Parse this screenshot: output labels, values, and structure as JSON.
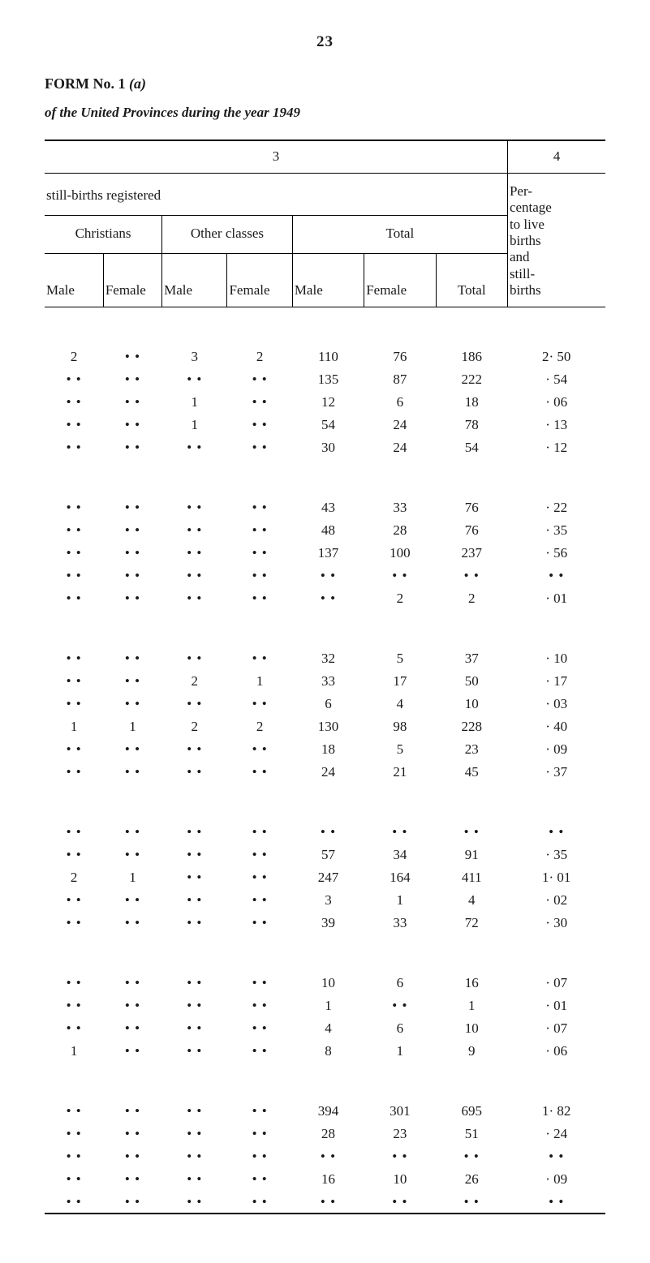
{
  "page_number": "23",
  "form_label_prefix": "FORM No. 1 ",
  "form_label_italic": "(a)",
  "title_italic_prefix": "of the United",
  "title_rest": " Provinces during the year 1949",
  "col_group_number_left": "3",
  "col_group_number_right": "4",
  "section_heading": "still-births registered",
  "spanners": {
    "christians": "Christians",
    "other": "Other classes",
    "total": "Total"
  },
  "subheaders": {
    "male": "Male",
    "female": "Female",
    "total": "Total"
  },
  "pct_header_lines": [
    "Per-",
    "centage",
    "to live",
    "births",
    "and",
    "still-",
    "births"
  ],
  "empty_cell": "• •",
  "blocks": [
    [
      [
        "2",
        "",
        "3",
        "2",
        "110",
        "76",
        "186",
        "2· 50"
      ],
      [
        "",
        "",
        "",
        "",
        "135",
        "87",
        "222",
        "· 54"
      ],
      [
        "",
        "",
        "1",
        "",
        "12",
        "6",
        "18",
        "· 06"
      ],
      [
        "",
        "",
        "1",
        "",
        "54",
        "24",
        "78",
        "· 13"
      ],
      [
        "",
        "",
        "",
        "",
        "30",
        "24",
        "54",
        "· 12"
      ]
    ],
    [
      [
        "",
        "",
        "",
        "",
        "43",
        "33",
        "76",
        "· 22"
      ],
      [
        "",
        "",
        "",
        "",
        "48",
        "28",
        "76",
        "· 35"
      ],
      [
        "",
        "",
        "",
        "",
        "137",
        "100",
        "237",
        "· 56"
      ],
      [
        "",
        "",
        "",
        "",
        "",
        "",
        "",
        ""
      ],
      [
        "",
        "",
        "",
        "",
        "",
        "2",
        "2",
        "· 01"
      ]
    ],
    [
      [
        "",
        "",
        "",
        "",
        "32",
        "5",
        "37",
        "· 10"
      ],
      [
        "",
        "",
        "2",
        "1",
        "33",
        "17",
        "50",
        "· 17"
      ],
      [
        "",
        "",
        "",
        "",
        "6",
        "4",
        "10",
        "· 03"
      ],
      [
        "1",
        "1",
        "2",
        "2",
        "130",
        "98",
        "228",
        "· 40"
      ],
      [
        "",
        "",
        "",
        "",
        "18",
        "5",
        "23",
        "· 09"
      ],
      [
        "",
        "",
        "",
        "",
        "24",
        "21",
        "45",
        "· 37"
      ]
    ],
    [
      [
        "",
        "",
        "",
        "",
        "",
        "",
        "",
        ""
      ],
      [
        "",
        "",
        "",
        "",
        "57",
        "34",
        "91",
        "· 35"
      ],
      [
        "2",
        "1",
        "",
        "",
        "247",
        "164",
        "411",
        "1· 01"
      ],
      [
        "",
        "",
        "",
        "",
        "3",
        "1",
        "4",
        "· 02"
      ],
      [
        "",
        "",
        "",
        "",
        "39",
        "33",
        "72",
        "· 30"
      ]
    ],
    [
      [
        "",
        "",
        "",
        "",
        "10",
        "6",
        "16",
        "· 07"
      ],
      [
        "",
        "",
        "",
        "",
        "1",
        "",
        "1",
        "· 01"
      ],
      [
        "",
        "",
        "",
        "",
        "4",
        "6",
        "10",
        "· 07"
      ],
      [
        "1",
        "",
        "",
        "",
        "8",
        "1",
        "9",
        "· 06"
      ]
    ],
    [
      [
        "",
        "",
        "",
        "",
        "394",
        "301",
        "695",
        "1· 82"
      ],
      [
        "",
        "",
        "",
        "",
        "28",
        "23",
        "51",
        "· 24"
      ],
      [
        "",
        "",
        "",
        "",
        "",
        "",
        "",
        ""
      ],
      [
        "",
        "",
        "",
        "",
        "16",
        "10",
        "26",
        "· 09"
      ],
      [
        "",
        "",
        "",
        "",
        "",
        "",
        "",
        ""
      ]
    ]
  ],
  "col_widths_pct": [
    9,
    9,
    10,
    10,
    11,
    11,
    11,
    15
  ],
  "colors": {
    "text": "#1a1a1a",
    "rule": "#000000",
    "background": "#ffffff"
  }
}
